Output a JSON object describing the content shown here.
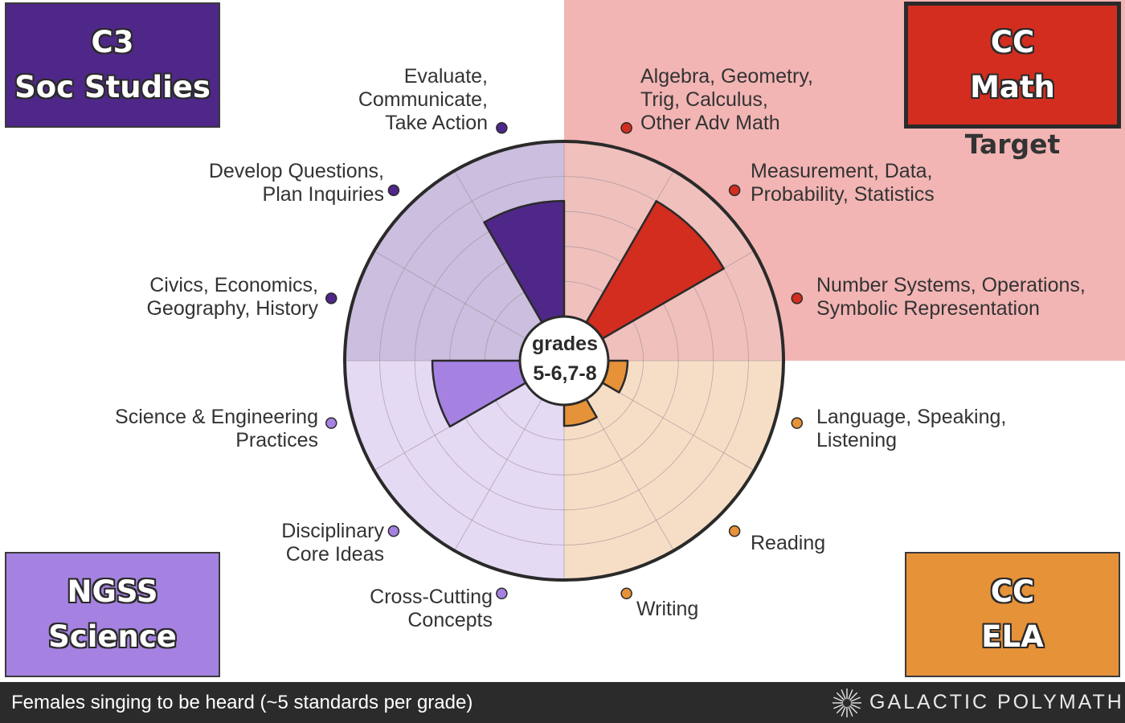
{
  "chart_data": {
    "type": "polar-bar",
    "rlim": [
      0,
      5
    ],
    "grid": true,
    "center_label": [
      "grades",
      "5-6,7-8"
    ],
    "caption": "Females singing to be heard (~5 standards per grade)",
    "target_label": "Target",
    "brand": "GALACTIC POLYMATH",
    "groups": [
      {
        "name": "C3 Soc Studies",
        "title_lines": [
          "C3",
          "Soc Studies"
        ],
        "quadrant": "top-left",
        "color": "#4f2789",
        "bg": "#cbbede"
      },
      {
        "name": "CC Math",
        "title_lines": [
          "CC",
          "Math"
        ],
        "quadrant": "top-right",
        "color": "#d22d1f",
        "bg": "#f0c0bd",
        "target": true
      },
      {
        "name": "NGSS Science",
        "title_lines": [
          "NGSS",
          "Science"
        ],
        "quadrant": "bottom-left",
        "color": "#a582e2",
        "bg": "#e5daf4"
      },
      {
        "name": "CC ELA",
        "title_lines": [
          "CC",
          "ELA"
        ],
        "quadrant": "bottom-right",
        "color": "#e69239",
        "bg": "#f6dec6"
      }
    ],
    "categories": [
      {
        "label": "Algebra, Geometry,\nTrig, Calculus,\nOther Adv Math",
        "group": "CC Math",
        "value": 0
      },
      {
        "label": "Measurement, Data,\nProbability, Statistics",
        "group": "CC Math",
        "value": 4.0
      },
      {
        "label": "Number Systems, Operations,\nSymbolic Representation",
        "group": "CC Math",
        "value": 0
      },
      {
        "label": "Language, Speaking,\nListening",
        "group": "CC ELA",
        "value": 0.55
      },
      {
        "label": "Reading",
        "group": "CC ELA",
        "value": 0
      },
      {
        "label": "Writing",
        "group": "CC ELA",
        "value": 0.6
      },
      {
        "label": "Cross-Cutting\nConcepts",
        "group": "NGSS Science",
        "value": 0
      },
      {
        "label": "Disciplinary\nCore Ideas",
        "group": "NGSS Science",
        "value": 0
      },
      {
        "label": "Science & Engineering\nPractices",
        "group": "NGSS Science",
        "value": 2.5
      },
      {
        "label": "Civics, Economics,\nGeography, History",
        "group": "C3 Soc Studies",
        "value": 0
      },
      {
        "label": "Develop Questions,\nPlan Inquiries",
        "group": "C3 Soc Studies",
        "value": 0
      },
      {
        "label": "Evaluate,\nCommunicate,\nTake Action",
        "group": "C3 Soc Studies",
        "value": 3.3
      }
    ]
  }
}
